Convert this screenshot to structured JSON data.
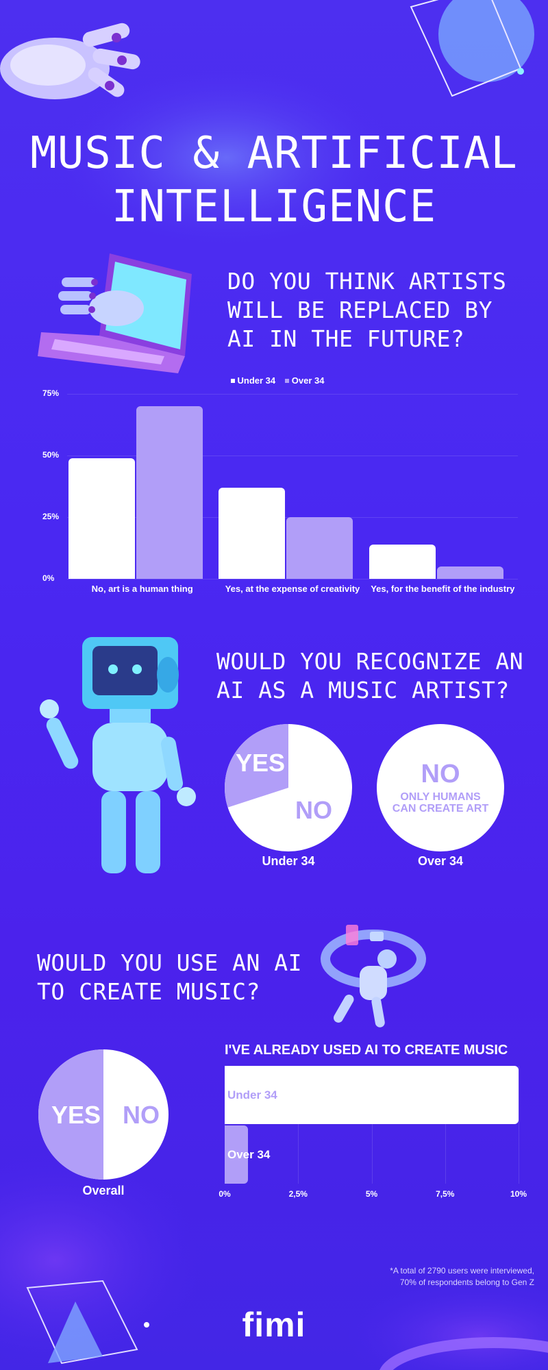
{
  "page": {
    "title_line1": "MUSIC & ARTIFICIAL",
    "title_line2": "INTELLIGENCE",
    "footnote_line1": "*A total of 2790 users were interviewed,",
    "footnote_line2": "70% of respondents belong to Gen Z",
    "logo": "fimi"
  },
  "colors": {
    "white": "#ffffff",
    "lavender": "#b19ef8",
    "background": "#4a28f2"
  },
  "questions": {
    "q1": [
      "DO YOU THINK ARTISTS",
      "WILL BE REPLACED BY",
      "AI IN THE FUTURE?"
    ],
    "q2": [
      "WOULD YOU RECOGNIZE AN",
      "AI AS A MUSIC ARTIST?"
    ],
    "q3": [
      "WOULD YOU USE AN AI",
      "TO CREATE MUSIC?"
    ]
  },
  "chart_data": [
    {
      "type": "bar",
      "categories": [
        "No, art is a human thing",
        "Yes, at the expense of creativity",
        "Yes, for the benefit of the industry"
      ],
      "series": [
        {
          "name": "Under 34",
          "color": "#ffffff",
          "values": [
            49,
            37,
            14
          ]
        },
        {
          "name": "Over 34",
          "color": "#b19ef8",
          "values": [
            70,
            25,
            5
          ]
        }
      ],
      "yticks": [
        "0%",
        "25%",
        "50%",
        "75%"
      ],
      "ylim": [
        0,
        75
      ],
      "legend": "top-center",
      "grid": true
    },
    {
      "type": "pie",
      "caption": "Under 34",
      "slices": [
        {
          "label": "YES",
          "value": 30,
          "color": "#b19ef8"
        },
        {
          "label": "NO",
          "value": 70,
          "color": "#ffffff"
        }
      ]
    },
    {
      "type": "pie",
      "caption": "Over 34",
      "slices": [
        {
          "label": "NO",
          "sublabel_line1": "ONLY HUMANS",
          "sublabel_line2": "CAN CREATE ART",
          "value": 100,
          "color": "#ffffff"
        }
      ]
    },
    {
      "type": "pie",
      "caption": "Overall",
      "slices": [
        {
          "label": "YES",
          "value": 50,
          "color": "#b19ef8"
        },
        {
          "label": "NO",
          "value": 50,
          "color": "#ffffff"
        }
      ]
    },
    {
      "type": "bar",
      "orientation": "horizontal",
      "title": "I'VE ALREADY USED AI TO CREATE MUSIC",
      "categories": [
        "Under 34",
        "Over 34"
      ],
      "values": [
        10,
        0.8
      ],
      "colors": [
        "#ffffff",
        "#b19ef8"
      ],
      "xticks": [
        "0%",
        "2,5%",
        "5%",
        "7,5%",
        "10%"
      ],
      "xlim": [
        0,
        10
      ]
    }
  ]
}
